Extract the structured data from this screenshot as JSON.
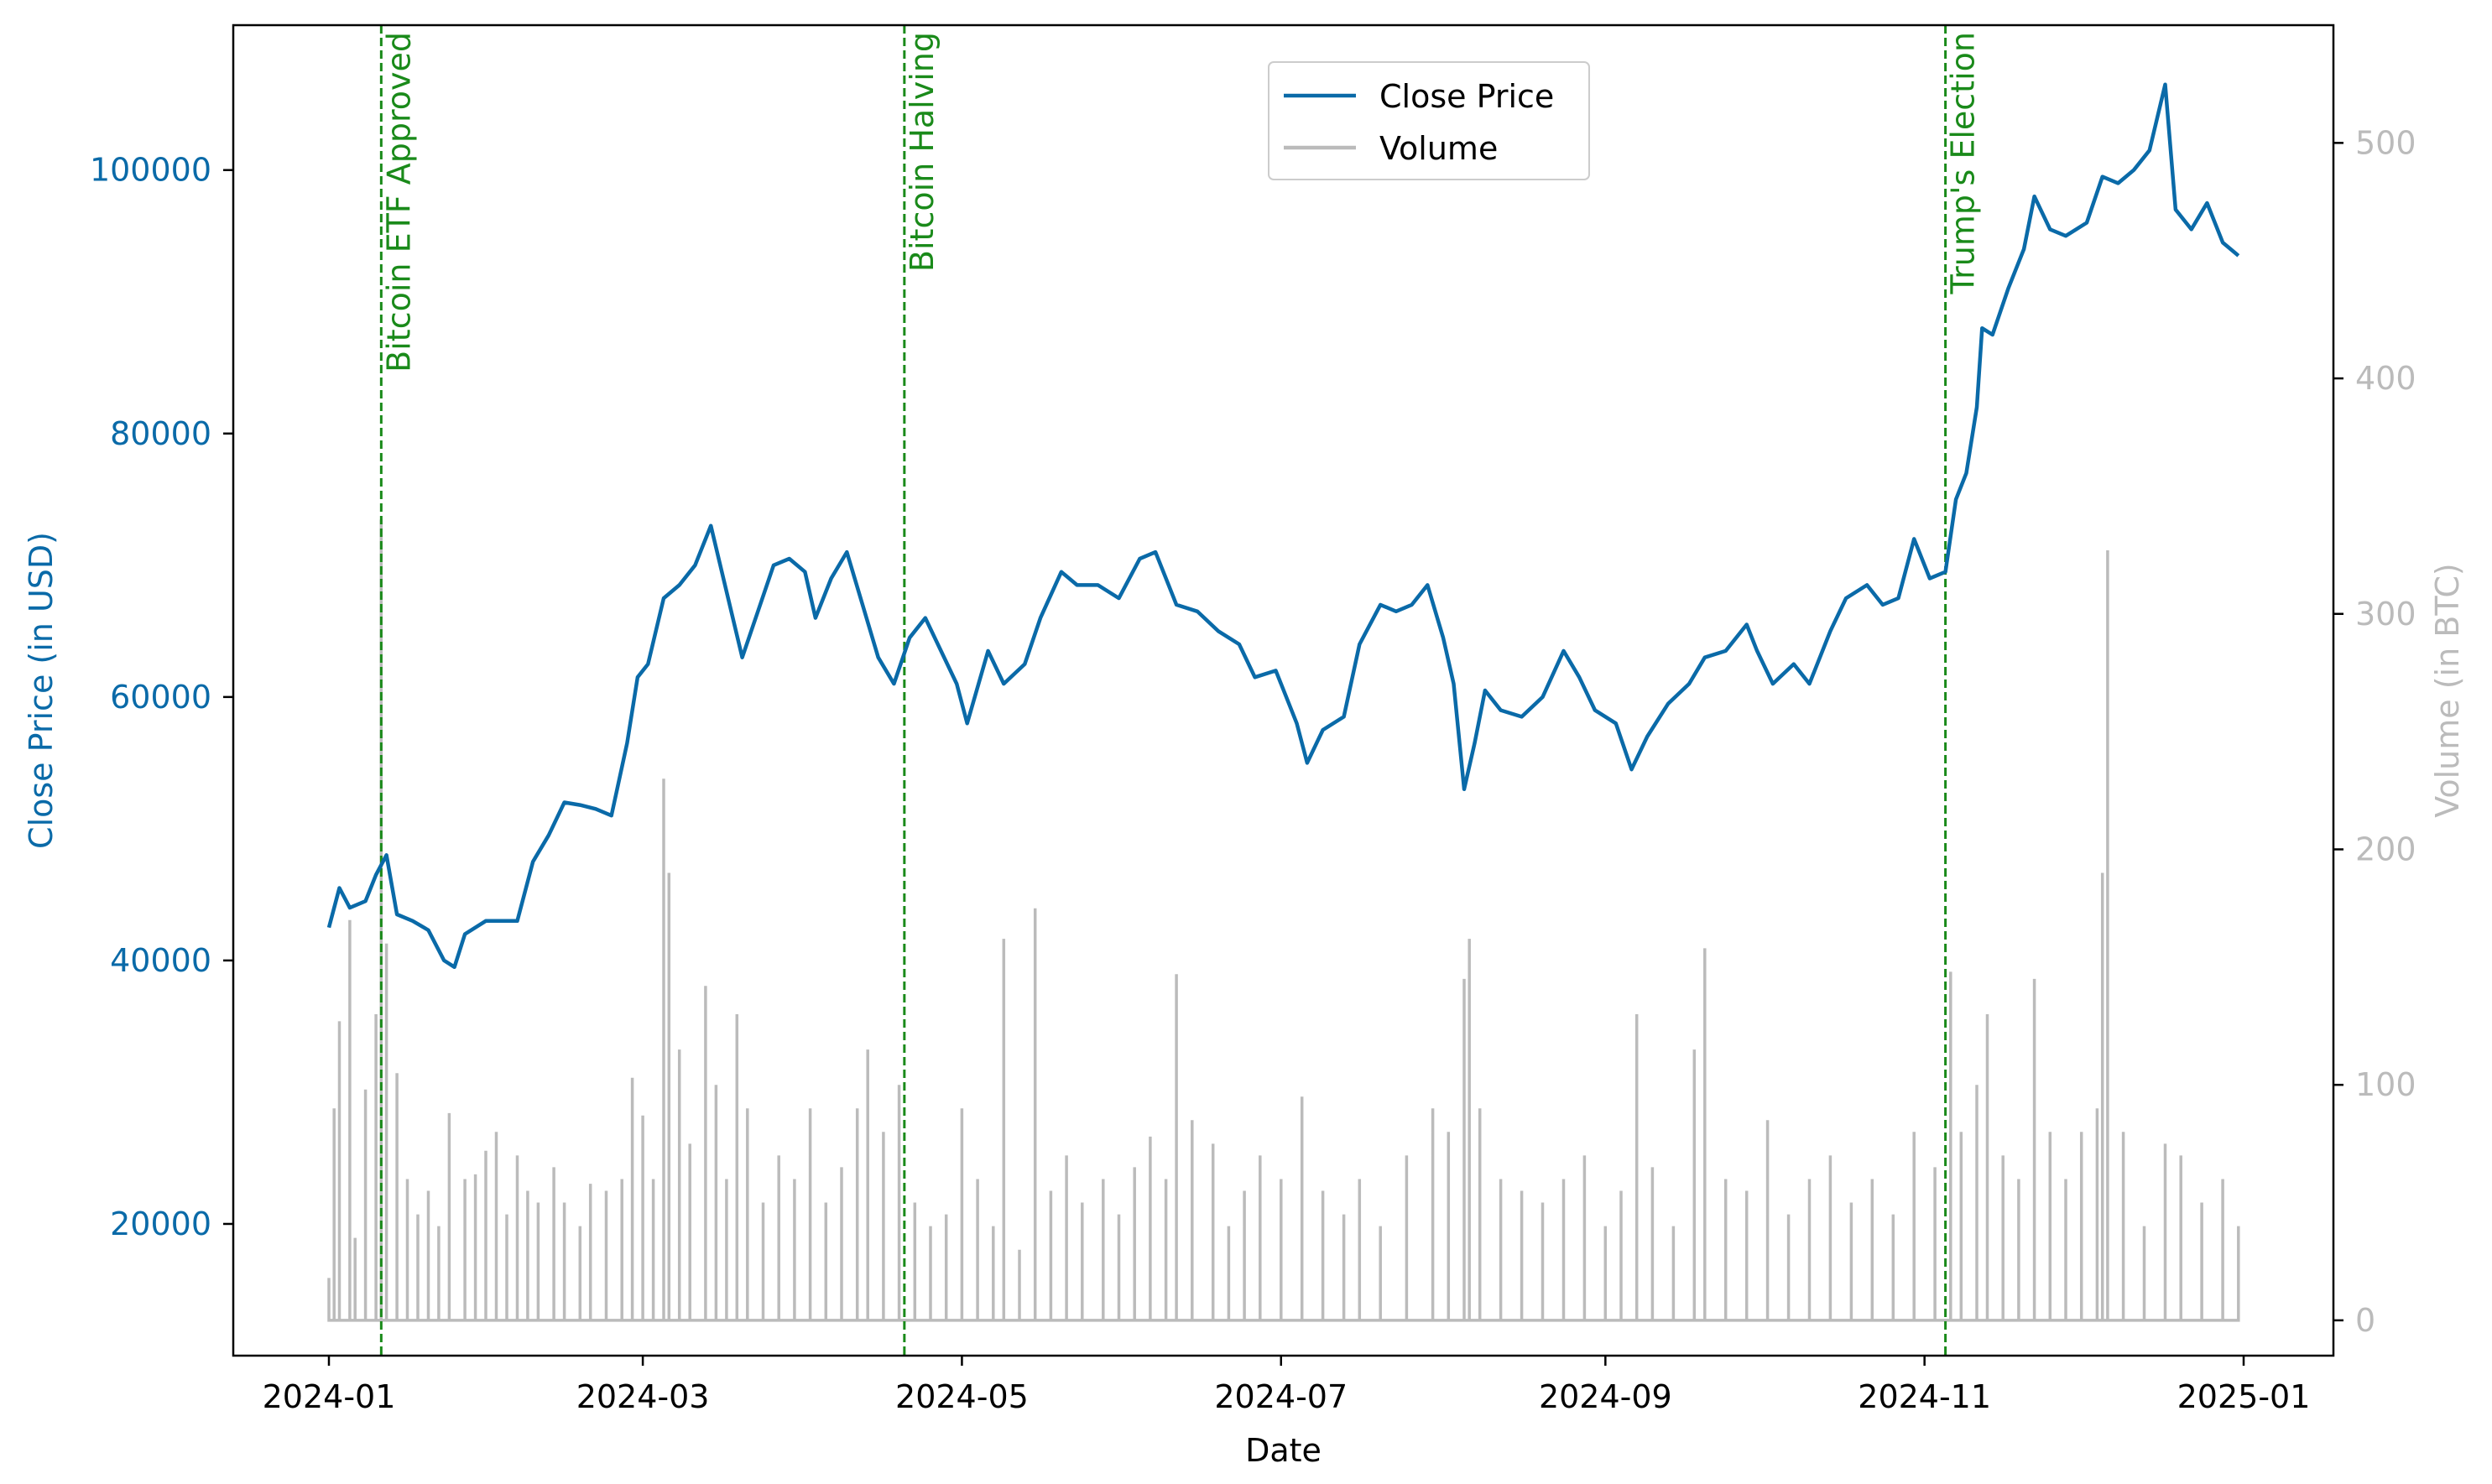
{
  "chart_data": {
    "type": "line",
    "xlabel": "Date",
    "ylabel_left": "Close Price (in USD)",
    "ylabel_right": "Volume (in BTC)",
    "x_range": [
      "2024-01-01",
      "2025-01-01"
    ],
    "ylim_left": [
      10000,
      111000
    ],
    "ylim_right": [
      -15,
      550
    ],
    "x_ticks": [
      "2024-01",
      "2024-03",
      "2024-05",
      "2024-07",
      "2024-09",
      "2024-11",
      "2025-01"
    ],
    "y_ticks_left": [
      20000,
      40000,
      60000,
      80000,
      100000
    ],
    "y_ticks_right": [
      0,
      100,
      200,
      300,
      400,
      500
    ],
    "legend": {
      "position": "top-center",
      "entries": [
        "Close Price",
        "Volume"
      ]
    },
    "colors": {
      "price": "#0a6aa8",
      "volume": "#bbbbbb",
      "event": "#1a8a1a",
      "right_axis": "#bbbbbb"
    },
    "events": [
      {
        "date": "2024-01-11",
        "label": "Bitcoin ETF Approved"
      },
      {
        "date": "2024-04-20",
        "label": "Bitcoin Halving"
      },
      {
        "date": "2024-11-05",
        "label": "Trump's Election"
      }
    ],
    "series": [
      {
        "name": "Close Price",
        "axis": "left",
        "points": [
          [
            "2024-01-01",
            42500
          ],
          [
            "2024-01-03",
            45500
          ],
          [
            "2024-01-05",
            44000
          ],
          [
            "2024-01-08",
            44500
          ],
          [
            "2024-01-10",
            46500
          ],
          [
            "2024-01-12",
            48000
          ],
          [
            "2024-01-14",
            43500
          ],
          [
            "2024-01-17",
            43000
          ],
          [
            "2024-01-20",
            42300
          ],
          [
            "2024-01-23",
            40000
          ],
          [
            "2024-01-25",
            39500
          ],
          [
            "2024-01-27",
            42000
          ],
          [
            "2024-01-31",
            43000
          ],
          [
            "2024-02-03",
            43000
          ],
          [
            "2024-02-06",
            43000
          ],
          [
            "2024-02-09",
            47500
          ],
          [
            "2024-02-12",
            49500
          ],
          [
            "2024-02-15",
            52000
          ],
          [
            "2024-02-18",
            51800
          ],
          [
            "2024-02-21",
            51500
          ],
          [
            "2024-02-24",
            51000
          ],
          [
            "2024-02-27",
            56500
          ],
          [
            "2024-02-29",
            61500
          ],
          [
            "2024-03-02",
            62500
          ],
          [
            "2024-03-05",
            67500
          ],
          [
            "2024-03-08",
            68500
          ],
          [
            "2024-03-11",
            70000
          ],
          [
            "2024-03-14",
            73000
          ],
          [
            "2024-03-17",
            68000
          ],
          [
            "2024-03-20",
            63000
          ],
          [
            "2024-03-23",
            66500
          ],
          [
            "2024-03-26",
            70000
          ],
          [
            "2024-03-29",
            70500
          ],
          [
            "2024-04-01",
            69500
          ],
          [
            "2024-04-03",
            66000
          ],
          [
            "2024-04-06",
            69000
          ],
          [
            "2024-04-09",
            71000
          ],
          [
            "2024-04-12",
            67000
          ],
          [
            "2024-04-15",
            63000
          ],
          [
            "2024-04-18",
            61000
          ],
          [
            "2024-04-21",
            64500
          ],
          [
            "2024-04-24",
            66000
          ],
          [
            "2024-04-27",
            63500
          ],
          [
            "2024-04-30",
            61000
          ],
          [
            "2024-05-02",
            58000
          ],
          [
            "2024-05-06",
            63500
          ],
          [
            "2024-05-09",
            61000
          ],
          [
            "2024-05-13",
            62500
          ],
          [
            "2024-05-16",
            66000
          ],
          [
            "2024-05-20",
            69500
          ],
          [
            "2024-05-23",
            68500
          ],
          [
            "2024-05-27",
            68500
          ],
          [
            "2024-05-31",
            67500
          ],
          [
            "2024-06-04",
            70500
          ],
          [
            "2024-06-07",
            71000
          ],
          [
            "2024-06-11",
            67000
          ],
          [
            "2024-06-15",
            66500
          ],
          [
            "2024-06-19",
            65000
          ],
          [
            "2024-06-23",
            64000
          ],
          [
            "2024-06-26",
            61500
          ],
          [
            "2024-06-30",
            62000
          ],
          [
            "2024-07-04",
            58000
          ],
          [
            "2024-07-06",
            55000
          ],
          [
            "2024-07-09",
            57500
          ],
          [
            "2024-07-13",
            58500
          ],
          [
            "2024-07-16",
            64000
          ],
          [
            "2024-07-20",
            67000
          ],
          [
            "2024-07-23",
            66500
          ],
          [
            "2024-07-26",
            67000
          ],
          [
            "2024-07-29",
            68500
          ],
          [
            "2024-08-01",
            64500
          ],
          [
            "2024-08-03",
            61000
          ],
          [
            "2024-08-05",
            53000
          ],
          [
            "2024-08-07",
            56500
          ],
          [
            "2024-08-09",
            60500
          ],
          [
            "2024-08-12",
            59000
          ],
          [
            "2024-08-16",
            58500
          ],
          [
            "2024-08-20",
            60000
          ],
          [
            "2024-08-24",
            63500
          ],
          [
            "2024-08-27",
            61500
          ],
          [
            "2024-08-30",
            59000
          ],
          [
            "2024-09-03",
            58000
          ],
          [
            "2024-09-06",
            54500
          ],
          [
            "2024-09-09",
            57000
          ],
          [
            "2024-09-13",
            59500
          ],
          [
            "2024-09-17",
            61000
          ],
          [
            "2024-09-20",
            63000
          ],
          [
            "2024-09-24",
            63500
          ],
          [
            "2024-09-28",
            65500
          ],
          [
            "2024-09-30",
            63500
          ],
          [
            "2024-10-03",
            61000
          ],
          [
            "2024-10-07",
            62500
          ],
          [
            "2024-10-10",
            61000
          ],
          [
            "2024-10-14",
            65000
          ],
          [
            "2024-10-17",
            67500
          ],
          [
            "2024-10-21",
            68500
          ],
          [
            "2024-10-24",
            67000
          ],
          [
            "2024-10-27",
            67500
          ],
          [
            "2024-10-30",
            72000
          ],
          [
            "2024-11-02",
            69000
          ],
          [
            "2024-11-05",
            69500
          ],
          [
            "2024-11-07",
            75000
          ],
          [
            "2024-11-09",
            77000
          ],
          [
            "2024-11-11",
            82000
          ],
          [
            "2024-11-12",
            88000
          ],
          [
            "2024-11-14",
            87500
          ],
          [
            "2024-11-17",
            91000
          ],
          [
            "2024-11-20",
            94000
          ],
          [
            "2024-11-22",
            98000
          ],
          [
            "2024-11-25",
            95500
          ],
          [
            "2024-11-28",
            95000
          ],
          [
            "2024-12-02",
            96000
          ],
          [
            "2024-12-05",
            99500
          ],
          [
            "2024-12-08",
            99000
          ],
          [
            "2024-12-11",
            100000
          ],
          [
            "2024-12-14",
            101500
          ],
          [
            "2024-12-17",
            106500
          ],
          [
            "2024-12-19",
            97000
          ],
          [
            "2024-12-22",
            95500
          ],
          [
            "2024-12-25",
            97500
          ],
          [
            "2024-12-28",
            94500
          ],
          [
            "2024-12-31",
            93500
          ]
        ]
      },
      {
        "name": "Volume",
        "axis": "right",
        "points": [
          [
            "2024-01-01",
            18
          ],
          [
            "2024-01-02",
            90
          ],
          [
            "2024-01-03",
            127
          ],
          [
            "2024-01-05",
            170
          ],
          [
            "2024-01-06",
            35
          ],
          [
            "2024-01-08",
            98
          ],
          [
            "2024-01-10",
            130
          ],
          [
            "2024-01-11",
            340
          ],
          [
            "2024-01-12",
            160
          ],
          [
            "2024-01-14",
            105
          ],
          [
            "2024-01-16",
            60
          ],
          [
            "2024-01-18",
            45
          ],
          [
            "2024-01-20",
            55
          ],
          [
            "2024-01-22",
            40
          ],
          [
            "2024-01-24",
            88
          ],
          [
            "2024-01-27",
            60
          ],
          [
            "2024-01-29",
            62
          ],
          [
            "2024-01-31",
            72
          ],
          [
            "2024-02-02",
            80
          ],
          [
            "2024-02-04",
            45
          ],
          [
            "2024-02-06",
            70
          ],
          [
            "2024-02-08",
            55
          ],
          [
            "2024-02-10",
            50
          ],
          [
            "2024-02-13",
            65
          ],
          [
            "2024-02-15",
            50
          ],
          [
            "2024-02-18",
            40
          ],
          [
            "2024-02-20",
            58
          ],
          [
            "2024-02-23",
            55
          ],
          [
            "2024-02-26",
            60
          ],
          [
            "2024-02-28",
            103
          ],
          [
            "2024-03-01",
            87
          ],
          [
            "2024-03-03",
            60
          ],
          [
            "2024-03-05",
            230
          ],
          [
            "2024-03-06",
            190
          ],
          [
            "2024-03-08",
            115
          ],
          [
            "2024-03-10",
            75
          ],
          [
            "2024-03-13",
            142
          ],
          [
            "2024-03-15",
            100
          ],
          [
            "2024-03-17",
            60
          ],
          [
            "2024-03-19",
            130
          ],
          [
            "2024-03-21",
            90
          ],
          [
            "2024-03-24",
            50
          ],
          [
            "2024-03-27",
            70
          ],
          [
            "2024-03-30",
            60
          ],
          [
            "2024-04-02",
            90
          ],
          [
            "2024-04-05",
            50
          ],
          [
            "2024-04-08",
            65
          ],
          [
            "2024-04-11",
            90
          ],
          [
            "2024-04-13",
            115
          ],
          [
            "2024-04-16",
            80
          ],
          [
            "2024-04-19",
            100
          ],
          [
            "2024-04-22",
            50
          ],
          [
            "2024-04-25",
            40
          ],
          [
            "2024-04-28",
            45
          ],
          [
            "2024-05-01",
            90
          ],
          [
            "2024-05-04",
            60
          ],
          [
            "2024-05-07",
            40
          ],
          [
            "2024-05-09",
            162
          ],
          [
            "2024-05-12",
            30
          ],
          [
            "2024-05-15",
            175
          ],
          [
            "2024-05-18",
            55
          ],
          [
            "2024-05-21",
            70
          ],
          [
            "2024-05-24",
            50
          ],
          [
            "2024-05-28",
            60
          ],
          [
            "2024-05-31",
            45
          ],
          [
            "2024-06-03",
            65
          ],
          [
            "2024-06-06",
            78
          ],
          [
            "2024-06-09",
            60
          ],
          [
            "2024-06-11",
            147
          ],
          [
            "2024-06-14",
            85
          ],
          [
            "2024-06-18",
            75
          ],
          [
            "2024-06-21",
            40
          ],
          [
            "2024-06-24",
            55
          ],
          [
            "2024-06-27",
            70
          ],
          [
            "2024-07-01",
            60
          ],
          [
            "2024-07-05",
            95
          ],
          [
            "2024-07-09",
            55
          ],
          [
            "2024-07-13",
            45
          ],
          [
            "2024-07-16",
            60
          ],
          [
            "2024-07-20",
            40
          ],
          [
            "2024-07-25",
            70
          ],
          [
            "2024-07-30",
            90
          ],
          [
            "2024-08-02",
            80
          ],
          [
            "2024-08-05",
            145
          ],
          [
            "2024-08-06",
            162
          ],
          [
            "2024-08-08",
            90
          ],
          [
            "2024-08-12",
            60
          ],
          [
            "2024-08-16",
            55
          ],
          [
            "2024-08-20",
            50
          ],
          [
            "2024-08-24",
            60
          ],
          [
            "2024-08-28",
            70
          ],
          [
            "2024-09-01",
            40
          ],
          [
            "2024-09-04",
            55
          ],
          [
            "2024-09-07",
            130
          ],
          [
            "2024-09-10",
            65
          ],
          [
            "2024-09-14",
            40
          ],
          [
            "2024-09-18",
            115
          ],
          [
            "2024-09-20",
            158
          ],
          [
            "2024-09-24",
            60
          ],
          [
            "2024-09-28",
            55
          ],
          [
            "2024-10-02",
            85
          ],
          [
            "2024-10-06",
            45
          ],
          [
            "2024-10-10",
            60
          ],
          [
            "2024-10-14",
            70
          ],
          [
            "2024-10-18",
            50
          ],
          [
            "2024-10-22",
            60
          ],
          [
            "2024-10-26",
            45
          ],
          [
            "2024-10-30",
            80
          ],
          [
            "2024-11-03",
            65
          ],
          [
            "2024-11-06",
            148
          ],
          [
            "2024-11-08",
            80
          ],
          [
            "2024-11-11",
            100
          ],
          [
            "2024-11-13",
            130
          ],
          [
            "2024-11-16",
            70
          ],
          [
            "2024-11-19",
            60
          ],
          [
            "2024-11-22",
            145
          ],
          [
            "2024-11-25",
            80
          ],
          [
            "2024-11-28",
            60
          ],
          [
            "2024-12-01",
            80
          ],
          [
            "2024-12-04",
            90
          ],
          [
            "2024-12-05",
            190
          ],
          [
            "2024-12-06",
            327
          ],
          [
            "2024-12-09",
            80
          ],
          [
            "2024-12-13",
            40
          ],
          [
            "2024-12-17",
            75
          ],
          [
            "2024-12-20",
            70
          ],
          [
            "2024-12-24",
            50
          ],
          [
            "2024-12-28",
            60
          ],
          [
            "2024-12-31",
            40
          ]
        ]
      }
    ]
  }
}
